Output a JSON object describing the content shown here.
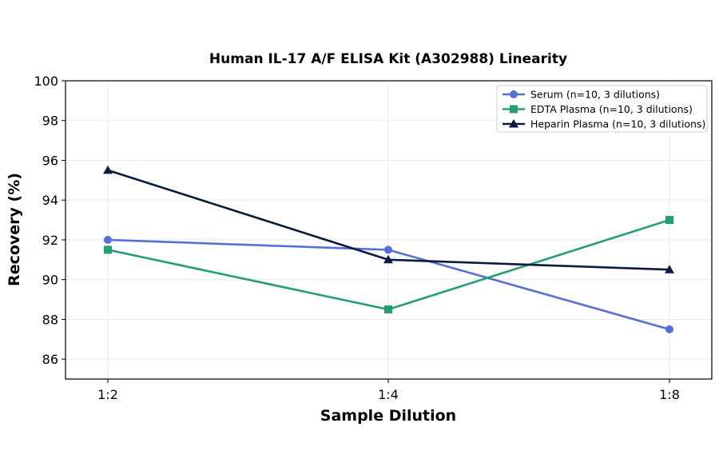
{
  "chart_data": {
    "type": "line",
    "title": "Human IL-17 A/F ELISA Kit (A302988) Linearity",
    "xlabel": "Sample Dilution",
    "ylabel": "Recovery (%)",
    "categories": [
      "1:2",
      "1:4",
      "1:8"
    ],
    "ylim": [
      85,
      100
    ],
    "yticks": [
      86,
      88,
      90,
      92,
      94,
      96,
      98,
      100
    ],
    "grid": true,
    "legend_position": "top-right",
    "series": [
      {
        "name": "Serum (n=10, 3 dilutions)",
        "values": [
          92.0,
          91.5,
          87.5
        ],
        "color": "#5470d6",
        "marker": "circle"
      },
      {
        "name": "EDTA Plasma (n=10, 3 dilutions)",
        "values": [
          91.5,
          88.5,
          93.0
        ],
        "color": "#259e78",
        "marker": "square"
      },
      {
        "name": "Heparin Plasma (n=10, 3 dilutions)",
        "values": [
          95.5,
          91.0,
          90.5
        ],
        "color": "#0b1a3f",
        "marker": "triangle"
      }
    ]
  }
}
